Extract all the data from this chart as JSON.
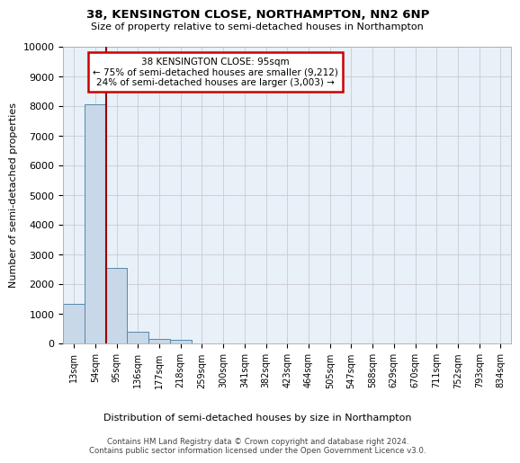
{
  "title1": "38, KENSINGTON CLOSE, NORTHAMPTON, NN2 6NP",
  "title2": "Size of property relative to semi-detached houses in Northampton",
  "xlabel_bottom": "Distribution of semi-detached houses by size in Northampton",
  "ylabel": "Number of semi-detached properties",
  "footnote": "Contains HM Land Registry data © Crown copyright and database right 2024.\nContains public sector information licensed under the Open Government Licence v3.0.",
  "bin_labels": [
    "13sqm",
    "54sqm",
    "95sqm",
    "136sqm",
    "177sqm",
    "218sqm",
    "259sqm",
    "300sqm",
    "341sqm",
    "382sqm",
    "423sqm",
    "464sqm",
    "505sqm",
    "547sqm",
    "588sqm",
    "629sqm",
    "670sqm",
    "711sqm",
    "752sqm",
    "793sqm",
    "834sqm"
  ],
  "bar_values": [
    1320,
    8050,
    2520,
    380,
    140,
    100,
    0,
    0,
    0,
    0,
    0,
    0,
    0,
    0,
    0,
    0,
    0,
    0,
    0,
    0,
    0
  ],
  "bar_color": "#c8d8e8",
  "bar_edge_color": "#5588aa",
  "property_line_color": "#990000",
  "ylim": [
    0,
    10000
  ],
  "yticks": [
    0,
    1000,
    2000,
    3000,
    4000,
    5000,
    6000,
    7000,
    8000,
    9000,
    10000
  ],
  "annotation_title": "38 KENSINGTON CLOSE: 95sqm",
  "annotation_line1": "← 75% of semi-detached houses are smaller (9,212)",
  "annotation_line2": "24% of semi-detached houses are larger (3,003) →",
  "annotation_box_color": "#cc0000",
  "background_color": "#ffffff",
  "ax_background_color": "#e8f0f8",
  "grid_color": "#cccccc"
}
